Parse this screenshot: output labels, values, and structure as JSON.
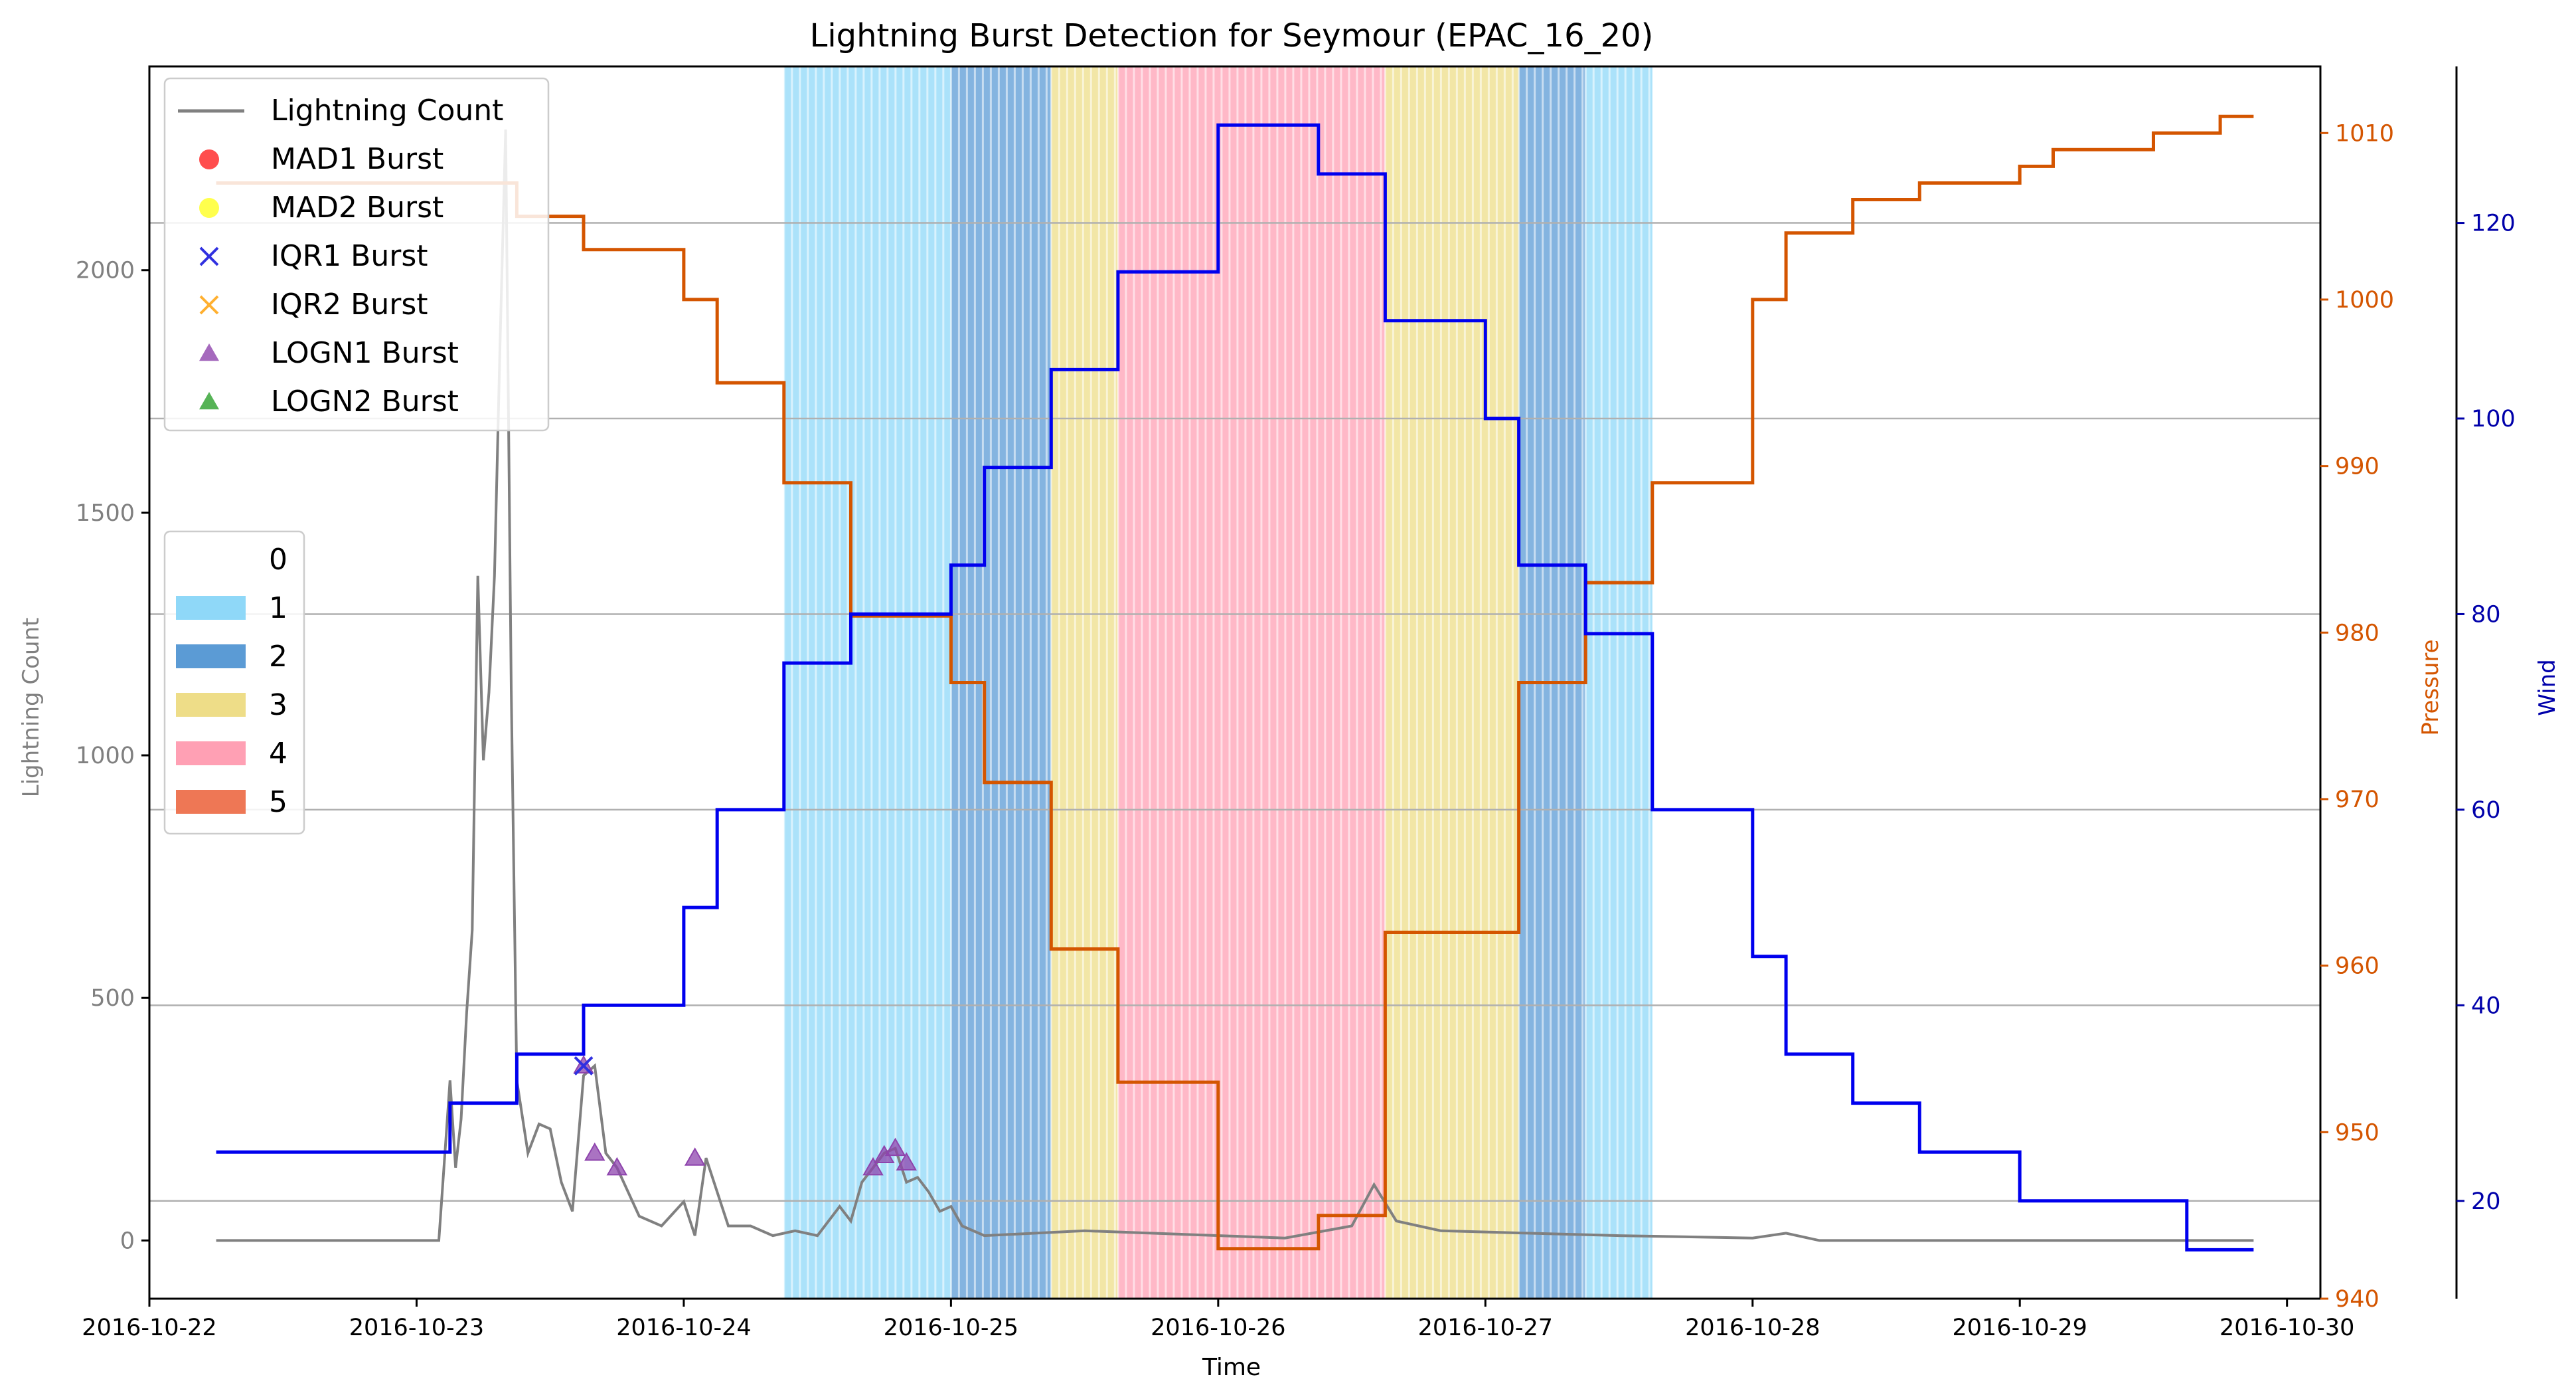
{
  "chart_data": {
    "type": "line",
    "title": "Lightning Burst Detection for Seymour (EPAC_16_20)",
    "xlabel": "Time",
    "ylabel_left": "Lightning Count",
    "ylabel_pressure": "Pressure",
    "ylabel_wind": "Wind",
    "x_range": [
      "2016-10-22 00:00",
      "2016-10-30 03:00"
    ],
    "x_ticks": [
      "2016-10-22",
      "2016-10-23",
      "2016-10-24",
      "2016-10-25",
      "2016-10-26",
      "2016-10-27",
      "2016-10-28",
      "2016-10-29",
      "2016-10-30"
    ],
    "ylim_left": [
      -120,
      2420
    ],
    "yticks_left": [
      0,
      500,
      1000,
      1500,
      2000
    ],
    "ylim_pressure": [
      940,
      1014
    ],
    "yticks_pressure": [
      940,
      950,
      960,
      970,
      980,
      990,
      1000,
      1010
    ],
    "ylim_wind": [
      10,
      136
    ],
    "yticks_wind": [
      20,
      40,
      60,
      80,
      100,
      120
    ],
    "grid": "horizontal lines at wind ticks",
    "colors": {
      "lightning": "#808080",
      "pressure": "#d45500",
      "wind": "#0000ee",
      "cat1": "#8fd8f8",
      "cat2": "#5b9bd5",
      "cat3": "#eedd88",
      "cat4": "#ffa0b4",
      "cat5": "#ee7755",
      "mad1": "#ff2020",
      "mad2": "#ffff20",
      "iqr1": "#3030e0",
      "iqr2": "#ffb030",
      "logn1": "#8e44ad",
      "logn2": "#2ca02c"
    },
    "legend_markers": [
      {
        "label": "Lightning Count",
        "marker": "line",
        "color": "#808080"
      },
      {
        "label": "MAD1 Burst",
        "marker": "circle",
        "color": "#ff2020"
      },
      {
        "label": "MAD2 Burst",
        "marker": "circle",
        "color": "#ffff20"
      },
      {
        "label": "IQR1 Burst",
        "marker": "x",
        "color": "#3030e0"
      },
      {
        "label": "IQR2 Burst",
        "marker": "x",
        "color": "#ffb030"
      },
      {
        "label": "LOGN1 Burst",
        "marker": "triangle",
        "color": "#8e44ad"
      },
      {
        "label": "LOGN2 Burst",
        "marker": "triangle",
        "color": "#2ca02c"
      }
    ],
    "legend_categories": [
      {
        "label": "0",
        "color": ""
      },
      {
        "label": "1",
        "color": "#8fd8f8"
      },
      {
        "label": "2",
        "color": "#5b9bd5"
      },
      {
        "label": "3",
        "color": "#eedd88"
      },
      {
        "label": "4",
        "color": "#ffa0b4"
      },
      {
        "label": "5",
        "color": "#ee7755"
      }
    ],
    "category_spans": [
      {
        "start": "2016-10-24 09:00",
        "end": "2016-10-25 00:00",
        "category": 1
      },
      {
        "start": "2016-10-25 00:00",
        "end": "2016-10-25 09:00",
        "category": 2
      },
      {
        "start": "2016-10-25 09:00",
        "end": "2016-10-25 15:00",
        "category": 3
      },
      {
        "start": "2016-10-25 15:00",
        "end": "2016-10-26 15:00",
        "category": 4
      },
      {
        "start": "2016-10-26 15:00",
        "end": "2016-10-27 03:00",
        "category": 3
      },
      {
        "start": "2016-10-27 03:00",
        "end": "2016-10-27 09:00",
        "category": 2
      },
      {
        "start": "2016-10-27 09:00",
        "end": "2016-10-27 15:00",
        "category": 1
      }
    ],
    "pressure_series": [
      {
        "t": "2016-10-22 06:00",
        "v": 1007
      },
      {
        "t": "2016-10-23 09:00",
        "v": 1005
      },
      {
        "t": "2016-10-23 15:00",
        "v": 1003
      },
      {
        "t": "2016-10-24 00:00",
        "v": 1000
      },
      {
        "t": "2016-10-24 03:00",
        "v": 995
      },
      {
        "t": "2016-10-24 09:00",
        "v": 989
      },
      {
        "t": "2016-10-24 15:00",
        "v": 981
      },
      {
        "t": "2016-10-25 00:00",
        "v": 977
      },
      {
        "t": "2016-10-25 03:00",
        "v": 971
      },
      {
        "t": "2016-10-25 09:00",
        "v": 961
      },
      {
        "t": "2016-10-25 15:00",
        "v": 953
      },
      {
        "t": "2016-10-26 00:00",
        "v": 943
      },
      {
        "t": "2016-10-26 09:00",
        "v": 945
      },
      {
        "t": "2016-10-26 15:00",
        "v": 962
      },
      {
        "t": "2016-10-27 03:00",
        "v": 977
      },
      {
        "t": "2016-10-27 09:00",
        "v": 983
      },
      {
        "t": "2016-10-27 15:00",
        "v": 989
      },
      {
        "t": "2016-10-28 00:00",
        "v": 1000
      },
      {
        "t": "2016-10-28 03:00",
        "v": 1004
      },
      {
        "t": "2016-10-28 09:00",
        "v": 1006
      },
      {
        "t": "2016-10-28 15:00",
        "v": 1007
      },
      {
        "t": "2016-10-29 00:00",
        "v": 1008
      },
      {
        "t": "2016-10-29 03:00",
        "v": 1009
      },
      {
        "t": "2016-10-29 12:00",
        "v": 1010
      },
      {
        "t": "2016-10-29 18:00",
        "v": 1011
      },
      {
        "t": "2016-10-29 21:00",
        "v": 1011
      }
    ],
    "wind_series": [
      {
        "t": "2016-10-22 06:00",
        "v": 25
      },
      {
        "t": "2016-10-23 03:00",
        "v": 30
      },
      {
        "t": "2016-10-23 09:00",
        "v": 35
      },
      {
        "t": "2016-10-23 15:00",
        "v": 40
      },
      {
        "t": "2016-10-24 00:00",
        "v": 50
      },
      {
        "t": "2016-10-24 03:00",
        "v": 60
      },
      {
        "t": "2016-10-24 09:00",
        "v": 75
      },
      {
        "t": "2016-10-24 15:00",
        "v": 80
      },
      {
        "t": "2016-10-25 00:00",
        "v": 85
      },
      {
        "t": "2016-10-25 03:00",
        "v": 95
      },
      {
        "t": "2016-10-25 09:00",
        "v": 105
      },
      {
        "t": "2016-10-25 15:00",
        "v": 115
      },
      {
        "t": "2016-10-26 00:00",
        "v": 130
      },
      {
        "t": "2016-10-26 09:00",
        "v": 125
      },
      {
        "t": "2016-10-26 15:00",
        "v": 110
      },
      {
        "t": "2016-10-27 00:00",
        "v": 100
      },
      {
        "t": "2016-10-27 03:00",
        "v": 85
      },
      {
        "t": "2016-10-27 09:00",
        "v": 78
      },
      {
        "t": "2016-10-27 15:00",
        "v": 60
      },
      {
        "t": "2016-10-28 00:00",
        "v": 45
      },
      {
        "t": "2016-10-28 03:00",
        "v": 35
      },
      {
        "t": "2016-10-28 09:00",
        "v": 30
      },
      {
        "t": "2016-10-28 15:00",
        "v": 25
      },
      {
        "t": "2016-10-29 00:00",
        "v": 20
      },
      {
        "t": "2016-10-29 15:00",
        "v": 15
      },
      {
        "t": "2016-10-29 21:00",
        "v": 15
      }
    ],
    "lightning_series": [
      {
        "t": "2016-10-22 06:00",
        "v": 0
      },
      {
        "t": "2016-10-23 02:00",
        "v": 0
      },
      {
        "t": "2016-10-23 03:00",
        "v": 330
      },
      {
        "t": "2016-10-23 03:30",
        "v": 150
      },
      {
        "t": "2016-10-23 04:00",
        "v": 250
      },
      {
        "t": "2016-10-23 04:30",
        "v": 470
      },
      {
        "t": "2016-10-23 05:00",
        "v": 640
      },
      {
        "t": "2016-10-23 05:30",
        "v": 1370
      },
      {
        "t": "2016-10-23 06:00",
        "v": 990
      },
      {
        "t": "2016-10-23 06:30",
        "v": 1130
      },
      {
        "t": "2016-10-23 07:00",
        "v": 1370
      },
      {
        "t": "2016-10-23 07:30",
        "v": 1850
      },
      {
        "t": "2016-10-23 08:00",
        "v": 2290
      },
      {
        "t": "2016-10-23 08:30",
        "v": 1140
      },
      {
        "t": "2016-10-23 09:00",
        "v": 330
      },
      {
        "t": "2016-10-23 10:00",
        "v": 180
      },
      {
        "t": "2016-10-23 11:00",
        "v": 240
      },
      {
        "t": "2016-10-23 12:00",
        "v": 230
      },
      {
        "t": "2016-10-23 13:00",
        "v": 120
      },
      {
        "t": "2016-10-23 14:00",
        "v": 60
      },
      {
        "t": "2016-10-23 15:00",
        "v": 340
      },
      {
        "t": "2016-10-23 16:00",
        "v": 360
      },
      {
        "t": "2016-10-23 17:00",
        "v": 180
      },
      {
        "t": "2016-10-23 18:00",
        "v": 150
      },
      {
        "t": "2016-10-23 20:00",
        "v": 50
      },
      {
        "t": "2016-10-23 22:00",
        "v": 30
      },
      {
        "t": "2016-10-24 00:00",
        "v": 80
      },
      {
        "t": "2016-10-24 01:00",
        "v": 10
      },
      {
        "t": "2016-10-24 02:00",
        "v": 170
      },
      {
        "t": "2016-10-24 03:00",
        "v": 100
      },
      {
        "t": "2016-10-24 04:00",
        "v": 30
      },
      {
        "t": "2016-10-24 06:00",
        "v": 30
      },
      {
        "t": "2016-10-24 08:00",
        "v": 10
      },
      {
        "t": "2016-10-24 10:00",
        "v": 20
      },
      {
        "t": "2016-10-24 12:00",
        "v": 10
      },
      {
        "t": "2016-10-24 14:00",
        "v": 70
      },
      {
        "t": "2016-10-24 15:00",
        "v": 40
      },
      {
        "t": "2016-10-24 16:00",
        "v": 120
      },
      {
        "t": "2016-10-24 17:00",
        "v": 150
      },
      {
        "t": "2016-10-24 18:00",
        "v": 180
      },
      {
        "t": "2016-10-24 19:00",
        "v": 190
      },
      {
        "t": "2016-10-24 20:00",
        "v": 120
      },
      {
        "t": "2016-10-24 21:00",
        "v": 130
      },
      {
        "t": "2016-10-24 22:00",
        "v": 100
      },
      {
        "t": "2016-10-24 23:00",
        "v": 60
      },
      {
        "t": "2016-10-25 00:00",
        "v": 70
      },
      {
        "t": "2016-10-25 01:00",
        "v": 30
      },
      {
        "t": "2016-10-25 03:00",
        "v": 10
      },
      {
        "t": "2016-10-25 12:00",
        "v": 20
      },
      {
        "t": "2016-10-25 18:00",
        "v": 15
      },
      {
        "t": "2016-10-26 06:00",
        "v": 5
      },
      {
        "t": "2016-10-26 12:00",
        "v": 30
      },
      {
        "t": "2016-10-26 14:00",
        "v": 115
      },
      {
        "t": "2016-10-26 16:00",
        "v": 40
      },
      {
        "t": "2016-10-26 20:00",
        "v": 20
      },
      {
        "t": "2016-10-27 12:00",
        "v": 10
      },
      {
        "t": "2016-10-28 00:00",
        "v": 5
      },
      {
        "t": "2016-10-28 03:00",
        "v": 15
      },
      {
        "t": "2016-10-28 06:00",
        "v": 0
      },
      {
        "t": "2016-10-29 21:00",
        "v": 0
      }
    ],
    "iqr1_bursts": [
      {
        "t": "2016-10-23 15:00",
        "v": 360
      }
    ],
    "logn1_bursts": [
      {
        "t": "2016-10-23 15:00",
        "v": 360
      },
      {
        "t": "2016-10-23 16:00",
        "v": 180
      },
      {
        "t": "2016-10-23 18:00",
        "v": 150
      },
      {
        "t": "2016-10-24 01:00",
        "v": 170
      },
      {
        "t": "2016-10-24 17:00",
        "v": 150
      },
      {
        "t": "2016-10-24 18:00",
        "v": 175
      },
      {
        "t": "2016-10-24 19:00",
        "v": 190
      },
      {
        "t": "2016-10-24 20:00",
        "v": 160
      }
    ]
  }
}
